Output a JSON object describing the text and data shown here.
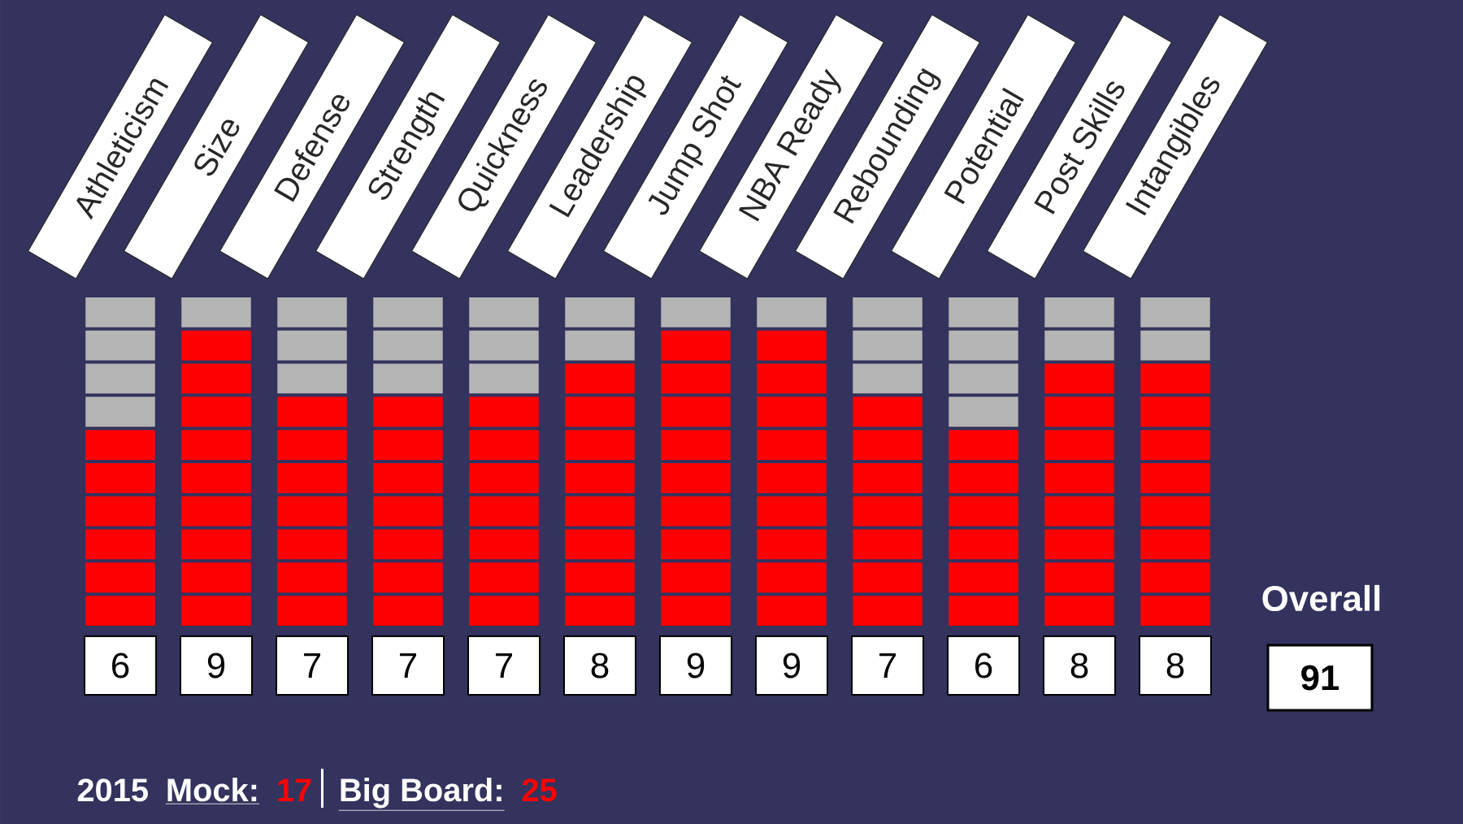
{
  "chart_data": {
    "type": "bar",
    "stacked": true,
    "categories": [
      "Athleticism",
      "Size",
      "Defense",
      "Strength",
      "Quickness",
      "Leadership",
      "Jump Shot",
      "NBA Ready",
      "Rebounding",
      "Potential",
      "Post Skills",
      "Intangibles"
    ],
    "series": [
      {
        "color": "#ff0000",
        "values": [
          6,
          9,
          7,
          7,
          7,
          8,
          9,
          9,
          7,
          6,
          8,
          8
        ],
        "value_labels": [
          "6",
          "9",
          "7",
          "7",
          "7",
          "8",
          "9",
          "9",
          "7",
          "6",
          "8",
          "8"
        ]
      },
      {
        "color": "#b4b4b4",
        "values": [
          4,
          1,
          3,
          3,
          3,
          2,
          1,
          1,
          3,
          4,
          2,
          2
        ]
      }
    ],
    "ylim": [
      0,
      10
    ],
    "yticks": [
      {
        "value": 0,
        "label": null
      },
      {
        "value": 1,
        "label": null
      },
      {
        "value": 2,
        "label": null
      },
      {
        "value": 3,
        "label": null
      },
      {
        "value": 4,
        "label": null
      },
      {
        "value": 5,
        "label": null
      },
      {
        "value": 6,
        "label": null
      },
      {
        "value": 7,
        "label": null
      },
      {
        "value": 8,
        "label": null
      },
      {
        "value": 9,
        "label": null
      },
      {
        "value": 10,
        "label": null
      }
    ],
    "grid": "y",
    "tick_labels": "x",
    "annotations": [
      "Overall",
      "91",
      "2015",
      "Mock:",
      "17",
      "Big Board:",
      "25"
    ]
  }
}
